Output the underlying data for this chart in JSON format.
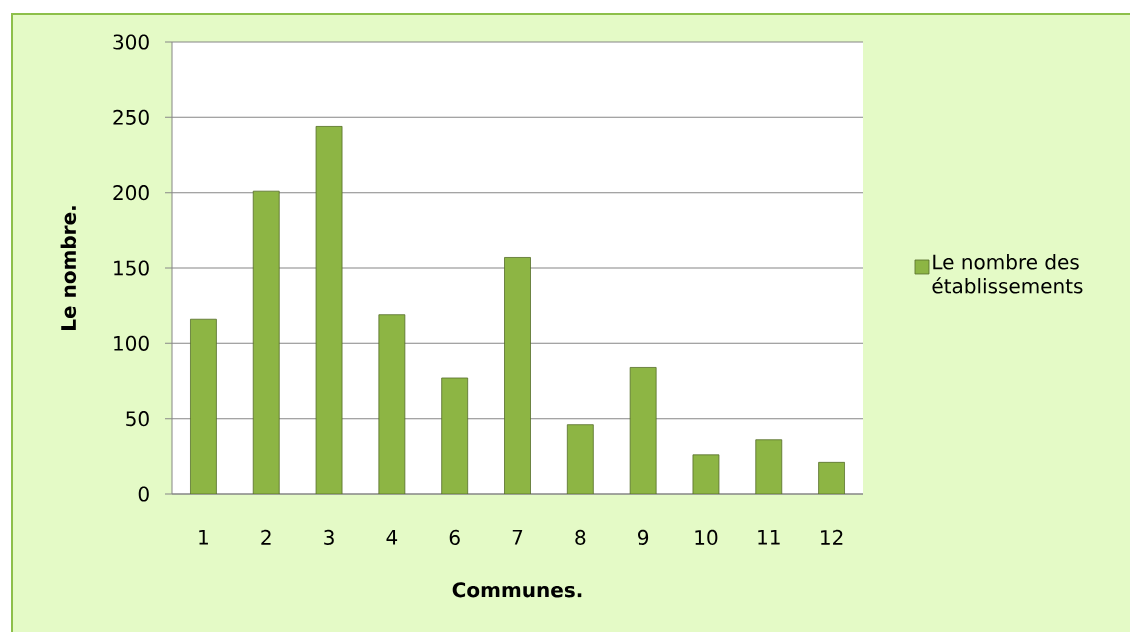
{
  "chart_data": {
    "type": "bar",
    "xlabel": "Communes.",
    "ylabel": "Le nombre.",
    "categories": [
      "1",
      "2",
      "3",
      "4",
      "6",
      "7",
      "8",
      "9",
      "10",
      "11",
      "12"
    ],
    "series": [
      {
        "name": "Le nombre des établissements",
        "color": "#8db544",
        "values": [
          116,
          201,
          244,
          119,
          77,
          157,
          46,
          84,
          26,
          36,
          21
        ]
      }
    ],
    "ylim": [
      0,
      300
    ],
    "yticks": [
      0,
      50,
      100,
      150,
      200,
      250,
      300
    ],
    "grid": "y",
    "legend": "right"
  }
}
